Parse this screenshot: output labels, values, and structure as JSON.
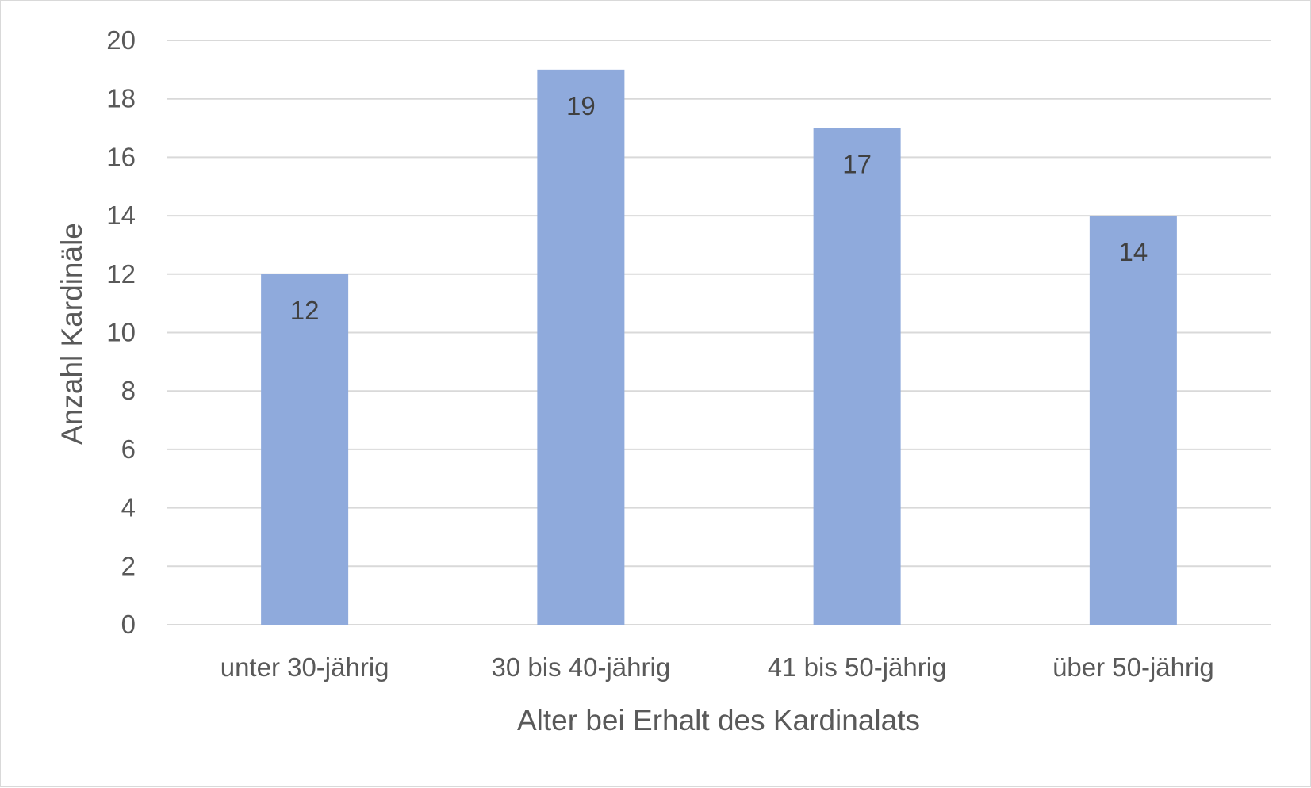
{
  "chart_data": {
    "type": "bar",
    "categories": [
      "unter 30-jährig",
      "30 bis 40-jährig",
      "41 bis 50-jährig",
      "über 50-jährig"
    ],
    "values": [
      12,
      19,
      17,
      14
    ],
    "data_labels": [
      "12",
      "19",
      "17",
      "14"
    ],
    "title": "",
    "xlabel": "Alter bei Erhalt des Kardinalats",
    "ylabel": "Anzahl Kardinäle",
    "ylim": [
      0,
      20
    ],
    "y_ticks": [
      "0",
      "2",
      "4",
      "6",
      "8",
      "10",
      "12",
      "14",
      "16",
      "18",
      "20"
    ],
    "grid": true,
    "legend": "none",
    "colors": {
      "bar": "#8faadc",
      "grid": "#d9d9d9",
      "axis_text": "#595959",
      "label_text": "#404040"
    }
  }
}
